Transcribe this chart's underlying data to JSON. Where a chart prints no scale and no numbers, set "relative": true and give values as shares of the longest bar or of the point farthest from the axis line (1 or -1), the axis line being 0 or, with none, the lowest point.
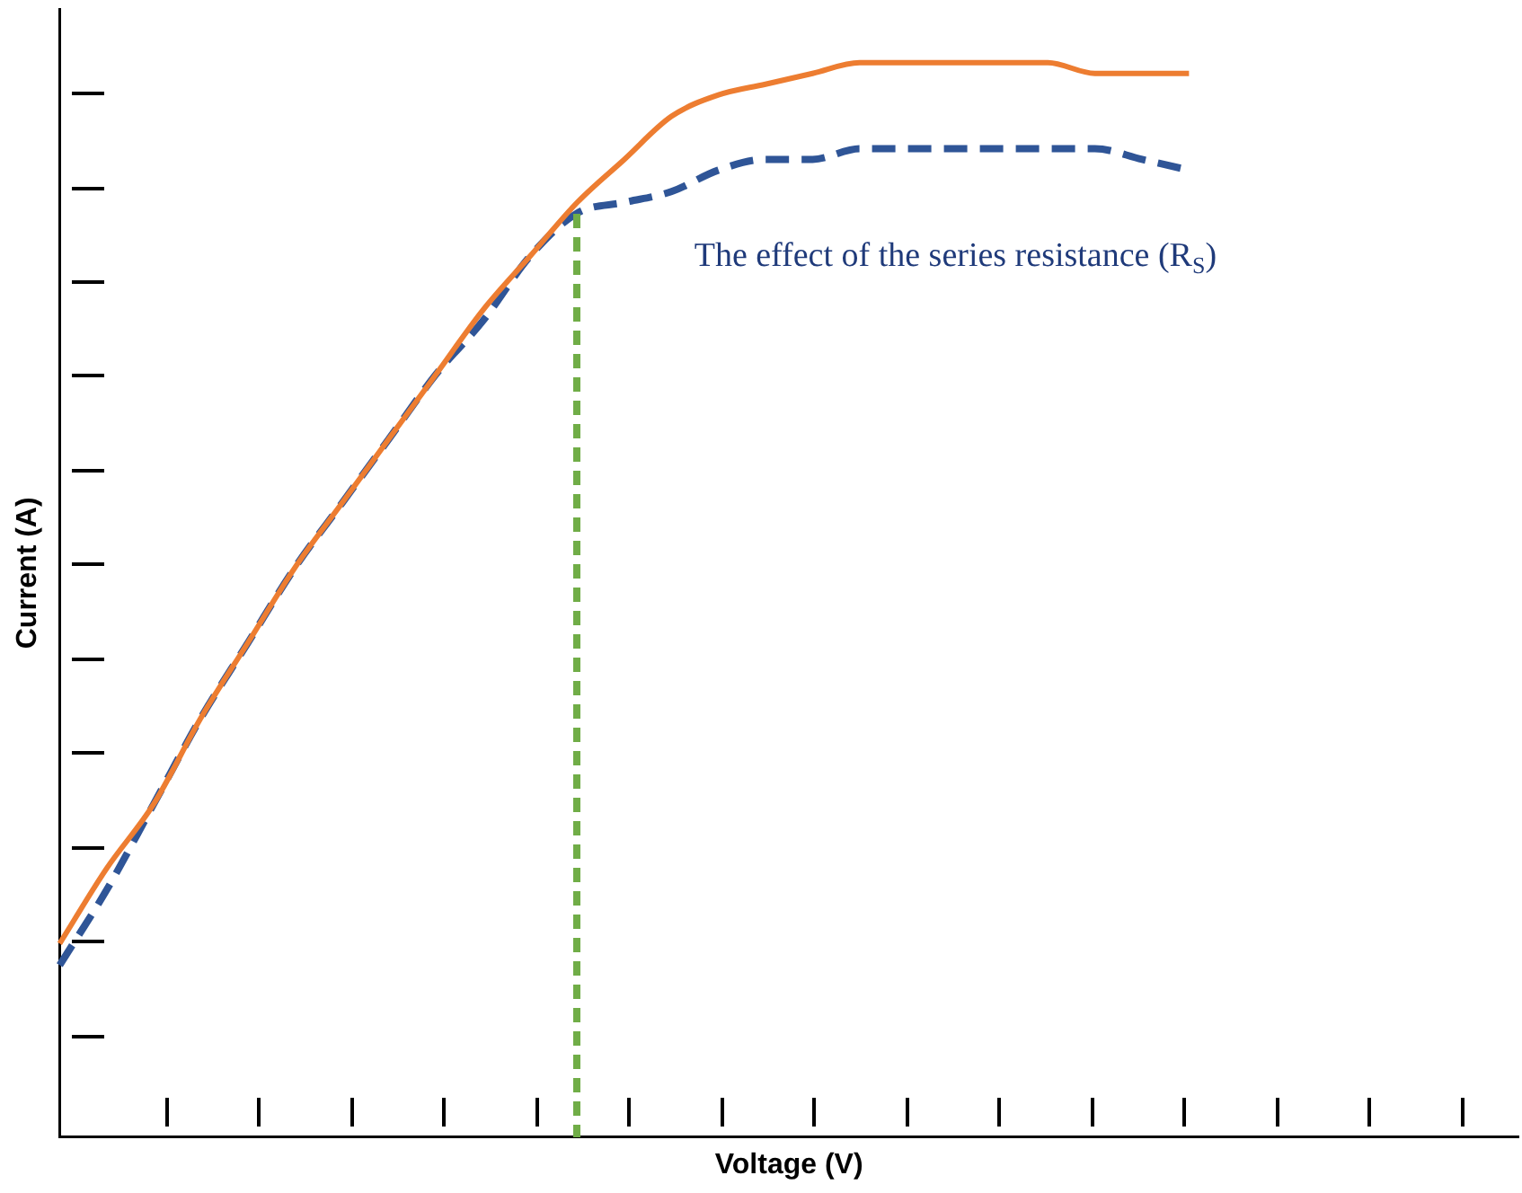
{
  "chart_data": {
    "type": "line",
    "relative": true,
    "xlabel": "Voltage (V)",
    "ylabel": "Current (A)",
    "marker": "none",
    "grid": false,
    "legend": false,
    "tick_labels": false,
    "categories": [
      null,
      null,
      null,
      null,
      null,
      null,
      null,
      null,
      null,
      null,
      null,
      null,
      null,
      null,
      null,
      null,
      null,
      null,
      null,
      null,
      null,
      null,
      null,
      null,
      null,
      null,
      null,
      null,
      null,
      null,
      null,
      null
    ],
    "series": [
      {
        "color": "#ed7d31",
        "line_style": "solid",
        "values": [
          0.18,
          0.25,
          0.31,
          0.39,
          0.46,
          0.53,
          0.59,
          0.65,
          0.71,
          0.77,
          0.82,
          0.87,
          0.91,
          0.95,
          0.97,
          0.98,
          0.99,
          1.0,
          1.0,
          1.0,
          1.0,
          1.0,
          0.99,
          0.99,
          0.99,
          null,
          null,
          null,
          null,
          null,
          null,
          null
        ]
      },
      {
        "color": "#2f5597",
        "line_style": "dashed",
        "values": [
          0.16,
          0.23,
          0.31,
          0.39,
          0.46,
          0.53,
          0.59,
          0.65,
          0.71,
          0.76,
          0.82,
          0.86,
          0.87,
          0.88,
          0.9,
          0.91,
          0.91,
          0.92,
          0.92,
          0.92,
          0.92,
          0.92,
          0.92,
          0.91,
          0.9,
          null,
          null,
          null,
          null,
          null,
          null,
          null
        ]
      }
    ],
    "annotations": [
      "The effect of the series resistance (R$_{S}$)"
    ]
  }
}
